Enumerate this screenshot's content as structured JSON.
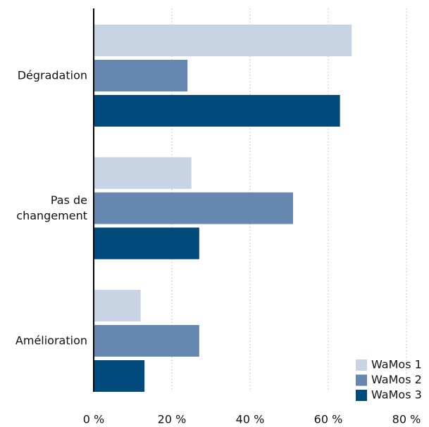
{
  "chart_data": {
    "type": "bar",
    "orientation": "horizontal",
    "categories": [
      "Dégradation",
      "Pas de changement",
      "Amélioration"
    ],
    "series": [
      {
        "name": "WaMos 1",
        "color": "#c8d3e3",
        "values": [
          66,
          25,
          12
        ]
      },
      {
        "name": "WaMos 2",
        "color": "#6688b0",
        "values": [
          24,
          51,
          27
        ]
      },
      {
        "name": "WaMos 3",
        "color": "#004a7c",
        "values": [
          63,
          27,
          13
        ]
      }
    ],
    "xlim": [
      0,
      80
    ],
    "xticks": [
      {
        "value": 0,
        "label": "0 %"
      },
      {
        "value": 20,
        "label": "20 %"
      },
      {
        "value": 40,
        "label": "40 %"
      },
      {
        "value": 60,
        "label": "60 %"
      },
      {
        "value": 80,
        "label": "80 %"
      }
    ],
    "grid": true,
    "legend": "lower right"
  }
}
